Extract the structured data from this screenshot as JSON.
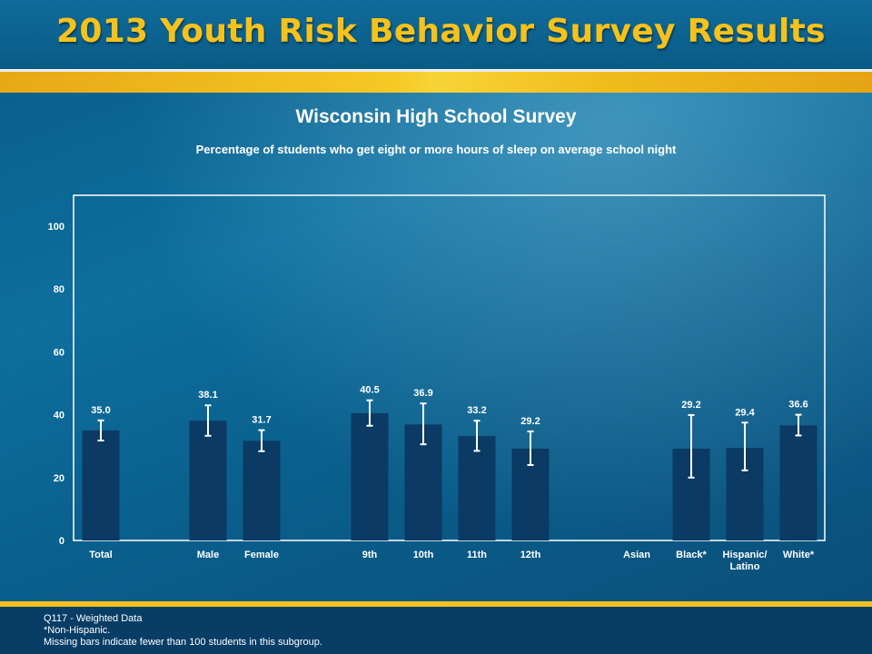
{
  "header": {
    "title": "2013 Youth Risk Behavior Survey Results"
  },
  "colors": {
    "bar": "#0b3a64",
    "title_gold": "#f5c21b",
    "axis": "#ffffff"
  },
  "chart_data": {
    "type": "bar",
    "title": "Wisconsin High School Survey",
    "subtitle": "Percentage of students who get eight or more hours of sleep on average school night",
    "ylim": [
      0,
      100
    ],
    "yticks": [
      "0",
      "20",
      "40",
      "60",
      "80",
      "100"
    ],
    "grid": false,
    "categories": [
      "Total",
      "Male",
      "Female",
      "9th",
      "10th",
      "11th",
      "12th",
      "Asian",
      "Black*",
      "Hispanic/\nLatino",
      "White*"
    ],
    "values": [
      35.0,
      38.1,
      31.7,
      40.5,
      36.9,
      33.2,
      29.2,
      null,
      29.2,
      29.4,
      36.6
    ],
    "value_labels": [
      "35.0",
      "38.1",
      "31.7",
      "40.5",
      "36.9",
      "33.2",
      "29.2",
      "",
      "29.2",
      "29.4",
      "36.6"
    ],
    "ci_low": [
      31.8,
      33.3,
      28.4,
      36.5,
      30.6,
      28.5,
      24.0,
      null,
      20.0,
      22.3,
      33.4
    ],
    "ci_high": [
      38.2,
      43.0,
      35.1,
      44.6,
      43.6,
      38.1,
      34.7,
      null,
      39.9,
      37.5,
      40.0
    ]
  },
  "footer": {
    "line1": "Q117 - Weighted Data",
    "line2": "*Non-Hispanic.",
    "line3": "Missing bars indicate fewer than 100 students in this subgroup."
  }
}
